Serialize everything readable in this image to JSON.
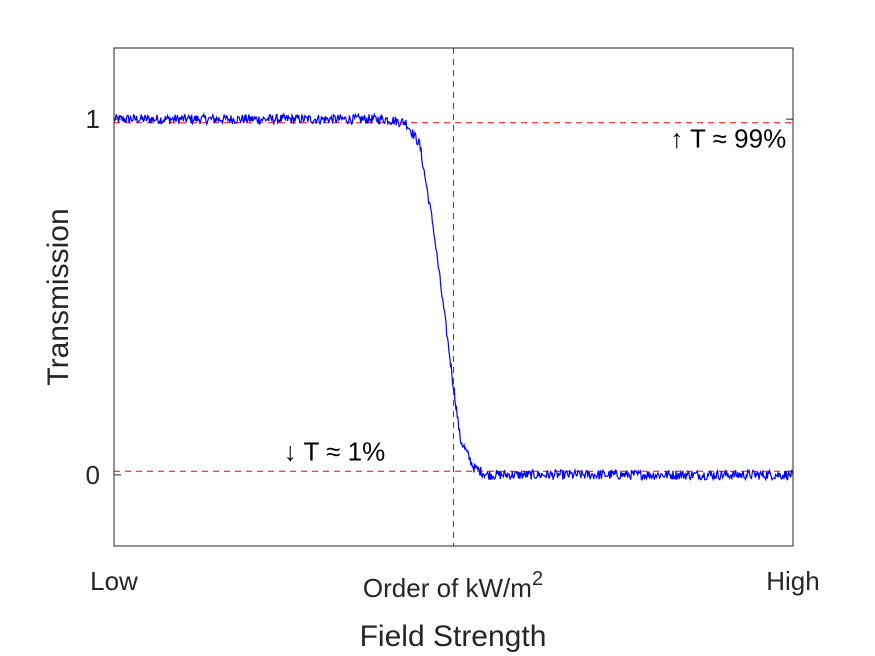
{
  "chart_data": {
    "type": "line",
    "title": "",
    "xlabel": "Field Strength",
    "ylabel": "Transmission",
    "xlim": [
      0,
      1
    ],
    "ylim": [
      -0.2,
      1.2
    ],
    "grid": false,
    "x_tick_labels": {
      "low": "Low",
      "mid": "Order of kW/m",
      "mid_superscript": "2",
      "high": "High"
    },
    "y_ticks": [
      0,
      1
    ],
    "y_tick_labels": [
      "0",
      "1"
    ],
    "series": [
      {
        "color": "#0000ff",
        "points": [
          [
            0.0,
            1.0
          ],
          [
            0.05,
            1.0
          ],
          [
            0.1,
            1.0
          ],
          [
            0.15,
            1.0
          ],
          [
            0.2,
            1.0
          ],
          [
            0.25,
            1.0
          ],
          [
            0.3,
            1.0
          ],
          [
            0.35,
            1.0
          ],
          [
            0.4,
            1.0
          ],
          [
            0.43,
            0.99
          ],
          [
            0.45,
            0.93
          ],
          [
            0.47,
            0.7
          ],
          [
            0.49,
            0.4
          ],
          [
            0.51,
            0.1
          ],
          [
            0.53,
            0.02
          ],
          [
            0.55,
            0.0
          ],
          [
            0.6,
            0.0
          ],
          [
            0.65,
            0.0
          ],
          [
            0.7,
            0.0
          ],
          [
            0.75,
            0.0
          ],
          [
            0.8,
            0.0
          ],
          [
            0.85,
            0.0
          ],
          [
            0.9,
            0.0
          ],
          [
            0.95,
            0.0
          ],
          [
            1.0,
            0.0
          ]
        ]
      }
    ],
    "reference_lines": {
      "color": "#ff0000",
      "style": "dashed",
      "horizontal": [
        0.99,
        0.01
      ],
      "vertical": [
        0.5
      ]
    },
    "annotations": [
      {
        "text": "↑ T ≈ 99%",
        "x": 0.99,
        "y": 0.92,
        "anchor": "end"
      },
      {
        "text": "↓ T ≈ 1%",
        "x": 0.25,
        "y": 0.04,
        "anchor": "start"
      }
    ]
  }
}
